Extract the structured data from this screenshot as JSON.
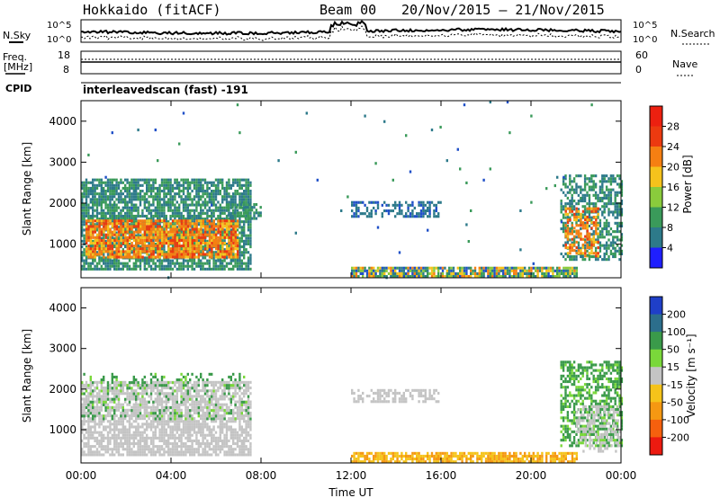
{
  "header": {
    "title": "Hokkaido (fitACF)",
    "beam": "Beam 00",
    "date_range": "20/Nov/2015 – 21/Nov/2015"
  },
  "top_panels": {
    "nsky_label": "N.Sky",
    "nsearch_label": "N.Search",
    "noise_ticks_left": [
      "10^5",
      "10^0"
    ],
    "noise_ticks_right": [
      "10^5",
      "10^0"
    ],
    "freq_label_1": "Freq.",
    "freq_label_2": "[MHz]",
    "freq_ticks": [
      "18",
      "8"
    ],
    "nave_label": "Nave",
    "nave_ticks": [
      "60",
      "0"
    ],
    "cpid_label": "CPID",
    "cpid_text": "interleavedscan (fast) -191"
  },
  "x_axis": {
    "label": "Time UT",
    "ticks": [
      "00:00",
      "04:00",
      "08:00",
      "12:00",
      "16:00",
      "20:00",
      "00:00"
    ]
  },
  "chart_data": [
    {
      "type": "heatmap",
      "name": "power",
      "xlabel": "Time UT",
      "ylabel": "Slant Range [km]",
      "xlim": [
        0,
        24
      ],
      "ylim": [
        180,
        4500
      ],
      "y_ticks": [
        "1000",
        "2000",
        "3000",
        "4000"
      ],
      "colorbar": {
        "label": "Power [dB]",
        "ticks": [
          "28",
          "24",
          "20",
          "16",
          "12",
          "8",
          "4"
        ],
        "range": [
          0,
          32
        ]
      },
      "regions": [
        {
          "t": [
            0.0,
            7.5
          ],
          "r": [
            400,
            2600
          ],
          "values": [
            8,
            16
          ],
          "density": 0.75
        },
        {
          "t": [
            0.2,
            7.0
          ],
          "r": [
            700,
            1600
          ],
          "values": [
            22,
            30
          ],
          "density": 0.8
        },
        {
          "t": [
            6.5,
            8.0
          ],
          "r": [
            1600,
            2000
          ],
          "values": [
            10,
            16
          ],
          "density": 0.55
        },
        {
          "t": [
            12.0,
            16.0
          ],
          "r": [
            1650,
            2050
          ],
          "values": [
            6,
            12
          ],
          "density": 0.45
        },
        {
          "t": [
            12.0,
            22.0
          ],
          "r": [
            180,
            450
          ],
          "values": [
            4,
            28
          ],
          "density": 0.85
        },
        {
          "t": [
            21.3,
            24.0
          ],
          "r": [
            600,
            2700
          ],
          "values": [
            8,
            16
          ],
          "density": 0.55
        },
        {
          "t": [
            21.5,
            23.0
          ],
          "r": [
            700,
            1900
          ],
          "values": [
            22,
            30
          ],
          "density": 0.55
        },
        {
          "t": [
            0.0,
            24.0
          ],
          "r": [
            180,
            4500
          ],
          "values": [
            4,
            16
          ],
          "density": 0.004
        }
      ]
    },
    {
      "type": "heatmap",
      "name": "velocity",
      "xlabel": "Time UT",
      "ylabel": "Slant Range [km]",
      "xlim": [
        0,
        24
      ],
      "ylim": [
        180,
        4500
      ],
      "y_ticks": [
        "1000",
        "2000",
        "3000",
        "4000"
      ],
      "colorbar": {
        "label": "Velocity [m s⁻¹]",
        "ticks": [
          "200",
          "100",
          "50",
          "15",
          "-15",
          "-50",
          "-100",
          "-200"
        ],
        "range": [
          -250,
          250
        ]
      },
      "regions": [
        {
          "t": [
            0.0,
            7.5
          ],
          "r": [
            400,
            2200
          ],
          "values": [
            -10,
            10
          ],
          "density": 0.75
        },
        {
          "t": [
            0.0,
            7.5
          ],
          "r": [
            1300,
            2400
          ],
          "values": [
            20,
            60
          ],
          "density": 0.18
        },
        {
          "t": [
            12.0,
            16.0
          ],
          "r": [
            1700,
            2000
          ],
          "values": [
            -10,
            10
          ],
          "density": 0.45
        },
        {
          "t": [
            12.0,
            22.0
          ],
          "r": [
            180,
            450
          ],
          "values": [
            -40,
            -20
          ],
          "density": 0.8
        },
        {
          "t": [
            21.3,
            24.0
          ],
          "r": [
            600,
            2700
          ],
          "values": [
            20,
            60
          ],
          "density": 0.55
        },
        {
          "t": [
            22.0,
            24.0
          ],
          "r": [
            500,
            1600
          ],
          "values": [
            -10,
            10
          ],
          "density": 0.45
        }
      ]
    }
  ]
}
